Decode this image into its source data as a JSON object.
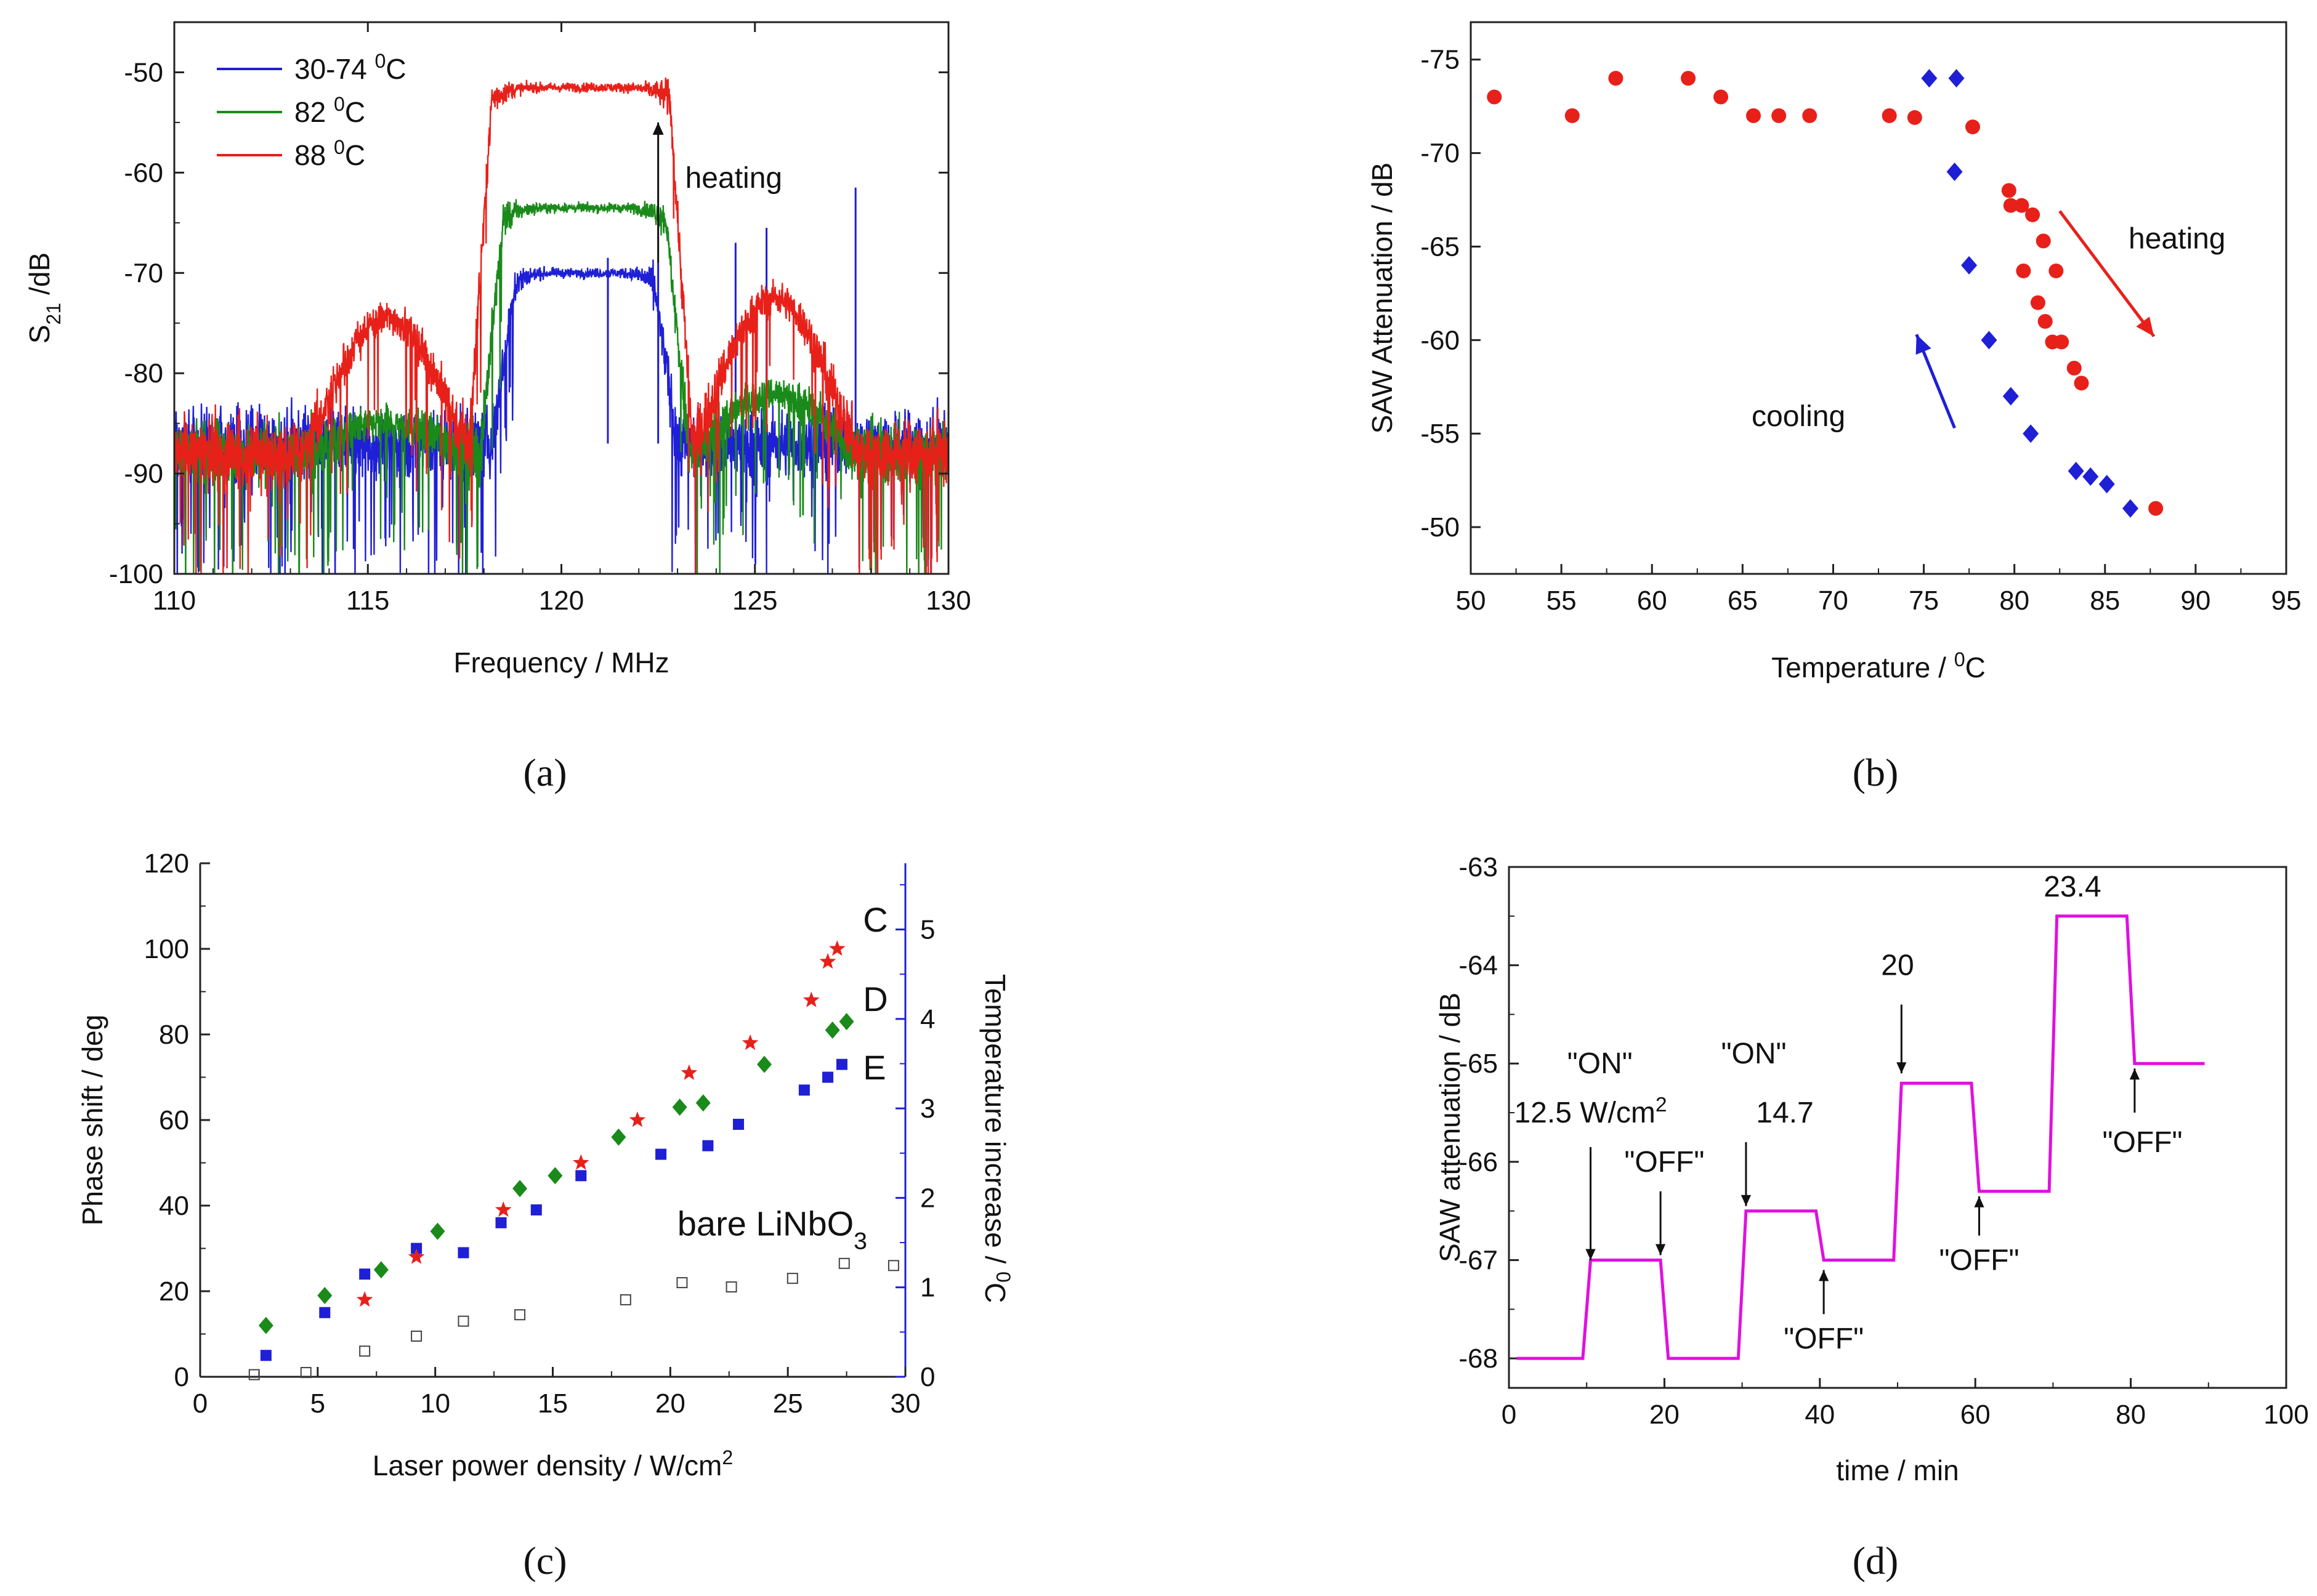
{
  "chart_data": [
    {
      "type": "line",
      "panel_label": "(a)",
      "panel_letter": "a",
      "xlabel": "Frequency / MHz",
      "ylabel": "S21 /dB",
      "ylabel_main": "S",
      "ylabel_sub": "21",
      "ylabel_rest": "/dB",
      "xlim": [
        110,
        130
      ],
      "ylim": [
        -100,
        -45
      ],
      "xticks": [
        110,
        115,
        120,
        125,
        130
      ],
      "yticks": [
        -100,
        -90,
        -80,
        -70,
        -60,
        -50
      ],
      "legend_position": "top-left",
      "series": [
        {
          "name": "30-74 °C",
          "name_main": "30-74 ",
          "name_sup": "0",
          "name_unit": "C",
          "color": "#1f1fd6",
          "noise_floor": -87,
          "sidelobes": [],
          "main_lobe": {
            "center": 120.6,
            "peak": -70,
            "half_width": 1.8
          },
          "spikes": [
            [
              121.2,
              -68.5
            ],
            [
              124.5,
              -67
            ],
            [
              125.3,
              -65.5
            ],
            [
              127.6,
              -61.5
            ],
            [
              122.5,
              -69
            ]
          ]
        },
        {
          "name": "82 °C",
          "name_main": "82 ",
          "name_sup": "0",
          "name_unit": "C",
          "color": "#1a8a1a",
          "noise_floor": -88,
          "sidelobes": [
            [
              115.5,
              -85
            ],
            [
              125.5,
              -82
            ]
          ],
          "main_lobe": {
            "center": 120.6,
            "peak": -63.5,
            "half_width": 2.1
          },
          "spikes": []
        },
        {
          "name": "88 °C",
          "name_main": "88 ",
          "name_sup": "0",
          "name_unit": "C",
          "color": "#e8201a",
          "noise_floor": -88,
          "sidelobes": [
            [
              115.5,
              -74.5
            ],
            [
              125.5,
              -72.5
            ]
          ],
          "main_lobe": {
            "center": 120.5,
            "peak": -51.5,
            "half_width": 2.3
          },
          "spikes": []
        }
      ],
      "annotations": [
        {
          "text": "heating",
          "x": 123.2,
          "y": -61.5,
          "arrow_from": [
            122.5,
            -69
          ],
          "arrow_to": [
            122.5,
            -55
          ]
        }
      ]
    },
    {
      "type": "scatter",
      "panel_label": "(b)",
      "panel_letter": "b",
      "xlabel": "Temperature / °C",
      "xlabel_main": "Temperature / ",
      "xlabel_sup": "0",
      "xlabel_unit": "C",
      "ylabel": "SAW   Attenuation / dB",
      "xlim": [
        50,
        95
      ],
      "ylim": [
        -47.5,
        -77
      ],
      "xticks": [
        50,
        55,
        60,
        65,
        70,
        75,
        80,
        85,
        90,
        95
      ],
      "yticks": [
        -75,
        -70,
        -65,
        -60,
        -55,
        -50
      ],
      "series": [
        {
          "name": "heating",
          "marker": "circle",
          "color": "#e8201a",
          "x": [
            51.3,
            55.6,
            58,
            62,
            63.8,
            65.6,
            67,
            68.7,
            73.1,
            74.5,
            77.7,
            79.7,
            79.8,
            80.4,
            81,
            80.5,
            81.6,
            81.3,
            82.3,
            81.7,
            82.1,
            82.6,
            83.3,
            83.7,
            87.8
          ],
          "y": [
            -73,
            -72,
            -74,
            -74,
            -73,
            -72,
            -72,
            -72,
            -72,
            -71.9,
            -71.4,
            -68,
            -67.2,
            -67.2,
            -66.7,
            -63.7,
            -65.3,
            -62,
            -63.7,
            -61,
            -59.9,
            -59.9,
            -58.5,
            -57.7,
            -51
          ]
        },
        {
          "name": "cooling",
          "marker": "diamond",
          "color": "#1f1fd6",
          "x": [
            75.3,
            76.8,
            76.7,
            77.5,
            78.6,
            79.8,
            80.9,
            83.4,
            84.2,
            85.1,
            86.4
          ],
          "y": [
            -74,
            -74,
            -69,
            -64,
            -60,
            -57,
            -55,
            -53,
            -52.7,
            -52.3,
            -51
          ]
        }
      ],
      "annotations": [
        {
          "text": "heating",
          "color": "#e8201a",
          "arrow_from": [
            82.5,
            -66.9
          ],
          "arrow_to": [
            87.7,
            -60.2
          ],
          "label_at": [
            86.3,
            -64.9
          ]
        },
        {
          "text": "cooling",
          "color": "#1f1fd6",
          "arrow_from": [
            76.7,
            -55.3
          ],
          "arrow_to": [
            74.6,
            -60.3
          ],
          "label_at": [
            65.5,
            -55.4
          ]
        }
      ]
    },
    {
      "type": "scatter",
      "panel_label": "(c)",
      "panel_letter": "c",
      "xlabel": "Laser power density / W/cm2",
      "xlabel_main": "Laser power density / W/cm",
      "xlabel_sup": "2",
      "ylabel": "Phase shift / deg",
      "y2label": "Temperature increase / °C",
      "y2label_main": "Temperature increase / ",
      "y2label_sup": "0",
      "y2label_unit": "C",
      "xlim": [
        0,
        30
      ],
      "ylim": [
        0,
        120
      ],
      "y2lim": [
        0,
        5.74
      ],
      "xticks": [
        0,
        5,
        10,
        15,
        20,
        25,
        30
      ],
      "yticks": [
        0,
        20,
        40,
        60,
        80,
        100,
        120
      ],
      "y2ticks": [
        0,
        1,
        2,
        3,
        4,
        5
      ],
      "series": [
        {
          "name": "C",
          "marker": "star",
          "color": "#e8201a",
          "x": [
            7,
            9.2,
            12.9,
            16.2,
            18.6,
            20.8,
            23.4,
            26,
            26.7,
            27.1
          ],
          "y": [
            18,
            28,
            39,
            50,
            60,
            71,
            78,
            88,
            97,
            100
          ]
        },
        {
          "name": "D",
          "marker": "diamond",
          "color": "#1a8a1a",
          "x": [
            2.8,
            5.3,
            7.7,
            10.1,
            13.6,
            15.1,
            17.8,
            20.4,
            21.4,
            24,
            26.9,
            27.5
          ],
          "y": [
            12,
            19,
            25,
            34,
            44,
            47,
            56,
            63,
            64,
            73,
            81,
            83
          ]
        },
        {
          "name": "E",
          "marker": "square",
          "color": "#1f1fd6",
          "x": [
            2.8,
            5.3,
            7,
            9.2,
            11.2,
            12.8,
            14.3,
            16.2,
            19.6,
            21.6,
            22.9,
            25.7,
            26.7,
            27.3
          ],
          "y": [
            5,
            15,
            24,
            30,
            29,
            36,
            39,
            47,
            52,
            54,
            59,
            67,
            70,
            73
          ]
        },
        {
          "name": "bare LiNbO3",
          "name_main": "bare LiNbO",
          "name_sub": "3",
          "marker": "open-square",
          "color": "#444444",
          "x": [
            2.3,
            4.5,
            7,
            9.2,
            11.2,
            13.6,
            18.1,
            20.5,
            22.6,
            25.2,
            27.4,
            29.5
          ],
          "y": [
            0.5,
            1,
            6,
            9.5,
            13,
            14.5,
            18,
            22,
            21,
            23,
            26.5,
            26
          ]
        }
      ],
      "annotations": [
        {
          "text": "C",
          "x": 28.2,
          "y": 104
        },
        {
          "text": "D",
          "x": 28.2,
          "y": 85.5
        },
        {
          "text": "E",
          "x": 28.2,
          "y": 69.5
        },
        {
          "text": "bare LiNbO3",
          "x": 20.3,
          "y": 33
        }
      ]
    },
    {
      "type": "line",
      "panel_label": "(d)",
      "panel_letter": "d",
      "xlabel": "time / min",
      "ylabel": "SAW attenuation / dB",
      "xlim": [
        0,
        100
      ],
      "ylim": [
        -68.3,
        -63
      ],
      "xticks": [
        0,
        20,
        40,
        60,
        80,
        100
      ],
      "yticks": [
        -68,
        -67,
        -66,
        -65,
        -64,
        -63
      ],
      "series": [
        {
          "name": "",
          "color": "#e010e0",
          "x": [
            1,
            9.5,
            10.5,
            19.5,
            20.5,
            29.5,
            30.5,
            39.5,
            40.5,
            49.5,
            50.5,
            59.5,
            60.5,
            69.5,
            70.5,
            79.5,
            80.5,
            89.5
          ],
          "y": [
            -68,
            -68,
            -67,
            -67,
            -68,
            -68,
            -66.5,
            -66.5,
            -67,
            -67,
            -65.2,
            -65.2,
            -66.3,
            -66.3,
            -63.5,
            -63.5,
            -65,
            -65
          ]
        }
      ],
      "annotations": [
        {
          "text": "\"ON\"",
          "x": 11.7,
          "y": -65.1
        },
        {
          "text": "12.5 W/cm2",
          "text_main": "12.5 W/cm",
          "text_sup": "2",
          "x": 10.5,
          "y": -65.6
        },
        {
          "text": "\"OFF\"",
          "x": 20,
          "y": -66.1
        },
        {
          "text": "\"ON\"",
          "x": 31.5,
          "y": -65
        },
        {
          "text": "14.7",
          "x": 35.5,
          "y": -65.6
        },
        {
          "text": "\"OFF\"",
          "x": 40.5,
          "y": -67.9
        },
        {
          "text": "20",
          "x": 50,
          "y": -64.1
        },
        {
          "text": "\"OFF\"",
          "x": 60.5,
          "y": -67.1
        },
        {
          "text": "23.4",
          "x": 72.5,
          "y": -63.3
        },
        {
          "text": "\"OFF\"",
          "x": 81.5,
          "y": -65.9
        }
      ]
    }
  ]
}
